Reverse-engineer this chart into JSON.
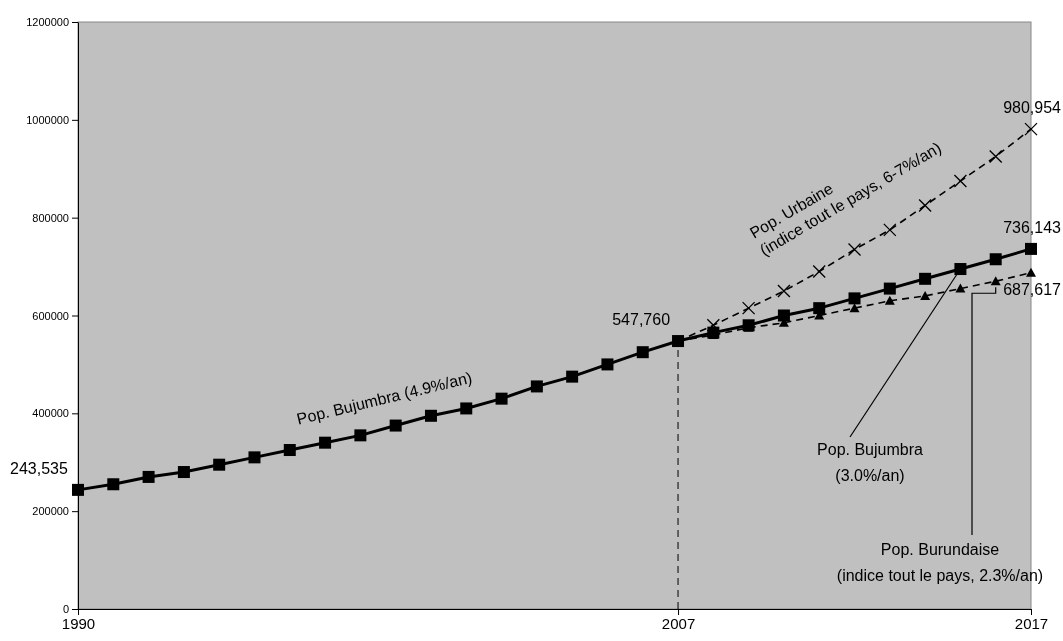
{
  "chart_data": {
    "type": "line",
    "xlim": [
      1990,
      2017
    ],
    "xticks": [
      1990,
      2007,
      2017
    ],
    "ylim": [
      0,
      1200000
    ],
    "yticks": [
      0,
      200000,
      400000,
      600000,
      800000,
      1000000,
      1200000
    ],
    "grid": false,
    "ref_lines": [
      {
        "axis": "x",
        "value": 2007,
        "line_style": "dashed",
        "color": "#000000"
      }
    ],
    "series": [
      {
        "name": "Pop. Bujumbra (4.9%/an)",
        "color": "#000000",
        "marker": "square",
        "line_style": "solid",
        "x": [
          1990,
          1991,
          1992,
          1993,
          1994,
          1995,
          1996,
          1997,
          1998,
          1999,
          2000,
          2001,
          2002,
          2003,
          2004,
          2005,
          2006,
          2007
        ],
        "values": [
          243535,
          255000,
          270000,
          280000,
          295000,
          310000,
          325000,
          340000,
          355000,
          375000,
          395000,
          410000,
          430000,
          455000,
          475000,
          500000,
          525000,
          547760
        ],
        "value_labels": [
          "243,535",
          null,
          null,
          null,
          null,
          null,
          null,
          null,
          null,
          null,
          null,
          null,
          null,
          null,
          null,
          null,
          null,
          "547,760"
        ]
      },
      {
        "name": "Pop. Urbaine (indice tout le pays, 6-7%/an)",
        "color": "#000000",
        "marker": "cross",
        "line_style": "dashed",
        "x": [
          2007,
          2008,
          2009,
          2010,
          2011,
          2012,
          2013,
          2014,
          2015,
          2016,
          2017
        ],
        "values": [
          547760,
          580000,
          615000,
          650000,
          690000,
          735000,
          775000,
          825000,
          875000,
          925000,
          980954
        ],
        "value_labels": [
          null,
          null,
          null,
          null,
          null,
          null,
          null,
          null,
          null,
          null,
          "980,954"
        ]
      },
      {
        "name": "Pop. Bujumbra (3.0%/an)",
        "color": "#000000",
        "marker": "square",
        "line_style": "solid",
        "x": [
          2007,
          2008,
          2009,
          2010,
          2011,
          2012,
          2013,
          2014,
          2015,
          2016,
          2017
        ],
        "values": [
          547760,
          565000,
          580000,
          600000,
          615000,
          635000,
          655000,
          675000,
          695000,
          715000,
          736143
        ],
        "value_labels": [
          null,
          null,
          null,
          null,
          null,
          null,
          null,
          null,
          null,
          null,
          "736,143"
        ]
      },
      {
        "name": "Pop. Burundaise (indice tout le pays, 2.3%/an)",
        "color": "#000000",
        "marker": "triangle",
        "line_style": "dashed",
        "x": [
          2007,
          2008,
          2009,
          2010,
          2011,
          2012,
          2013,
          2014,
          2015,
          2016,
          2017
        ],
        "values": [
          547760,
          560000,
          575000,
          585000,
          600000,
          615000,
          630000,
          640000,
          655000,
          670000,
          687617
        ],
        "value_labels": [
          null,
          null,
          null,
          null,
          null,
          null,
          null,
          null,
          null,
          null,
          "687,617"
        ]
      }
    ]
  }
}
